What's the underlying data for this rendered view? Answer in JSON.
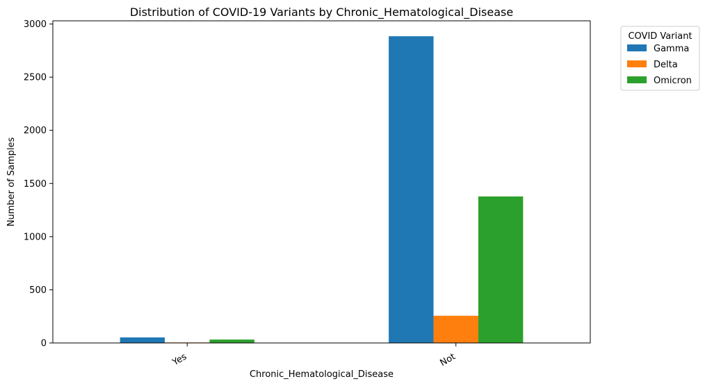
{
  "chart_data": {
    "type": "bar",
    "title": "Distribution of COVID-19 Variants by Chronic_Hematological_Disease",
    "xlabel": "Chronic_Hematological_Disease",
    "ylabel": "Number of Samples",
    "categories": [
      "Yes",
      "Not"
    ],
    "series": [
      {
        "name": "Gamma",
        "color": "#1f77b4",
        "values": [
          52,
          2885
        ]
      },
      {
        "name": "Delta",
        "color": "#ff7f0e",
        "values": [
          5,
          256
        ]
      },
      {
        "name": "Omicron",
        "color": "#2ca02c",
        "values": [
          32,
          1378
        ]
      }
    ],
    "ylim": [
      0,
      3030
    ],
    "yticks": [
      0,
      500,
      1000,
      1500,
      2000,
      2500,
      3000
    ],
    "grid": false,
    "legend": {
      "title": "COVID Variant",
      "placement": "outside-top-right"
    }
  }
}
